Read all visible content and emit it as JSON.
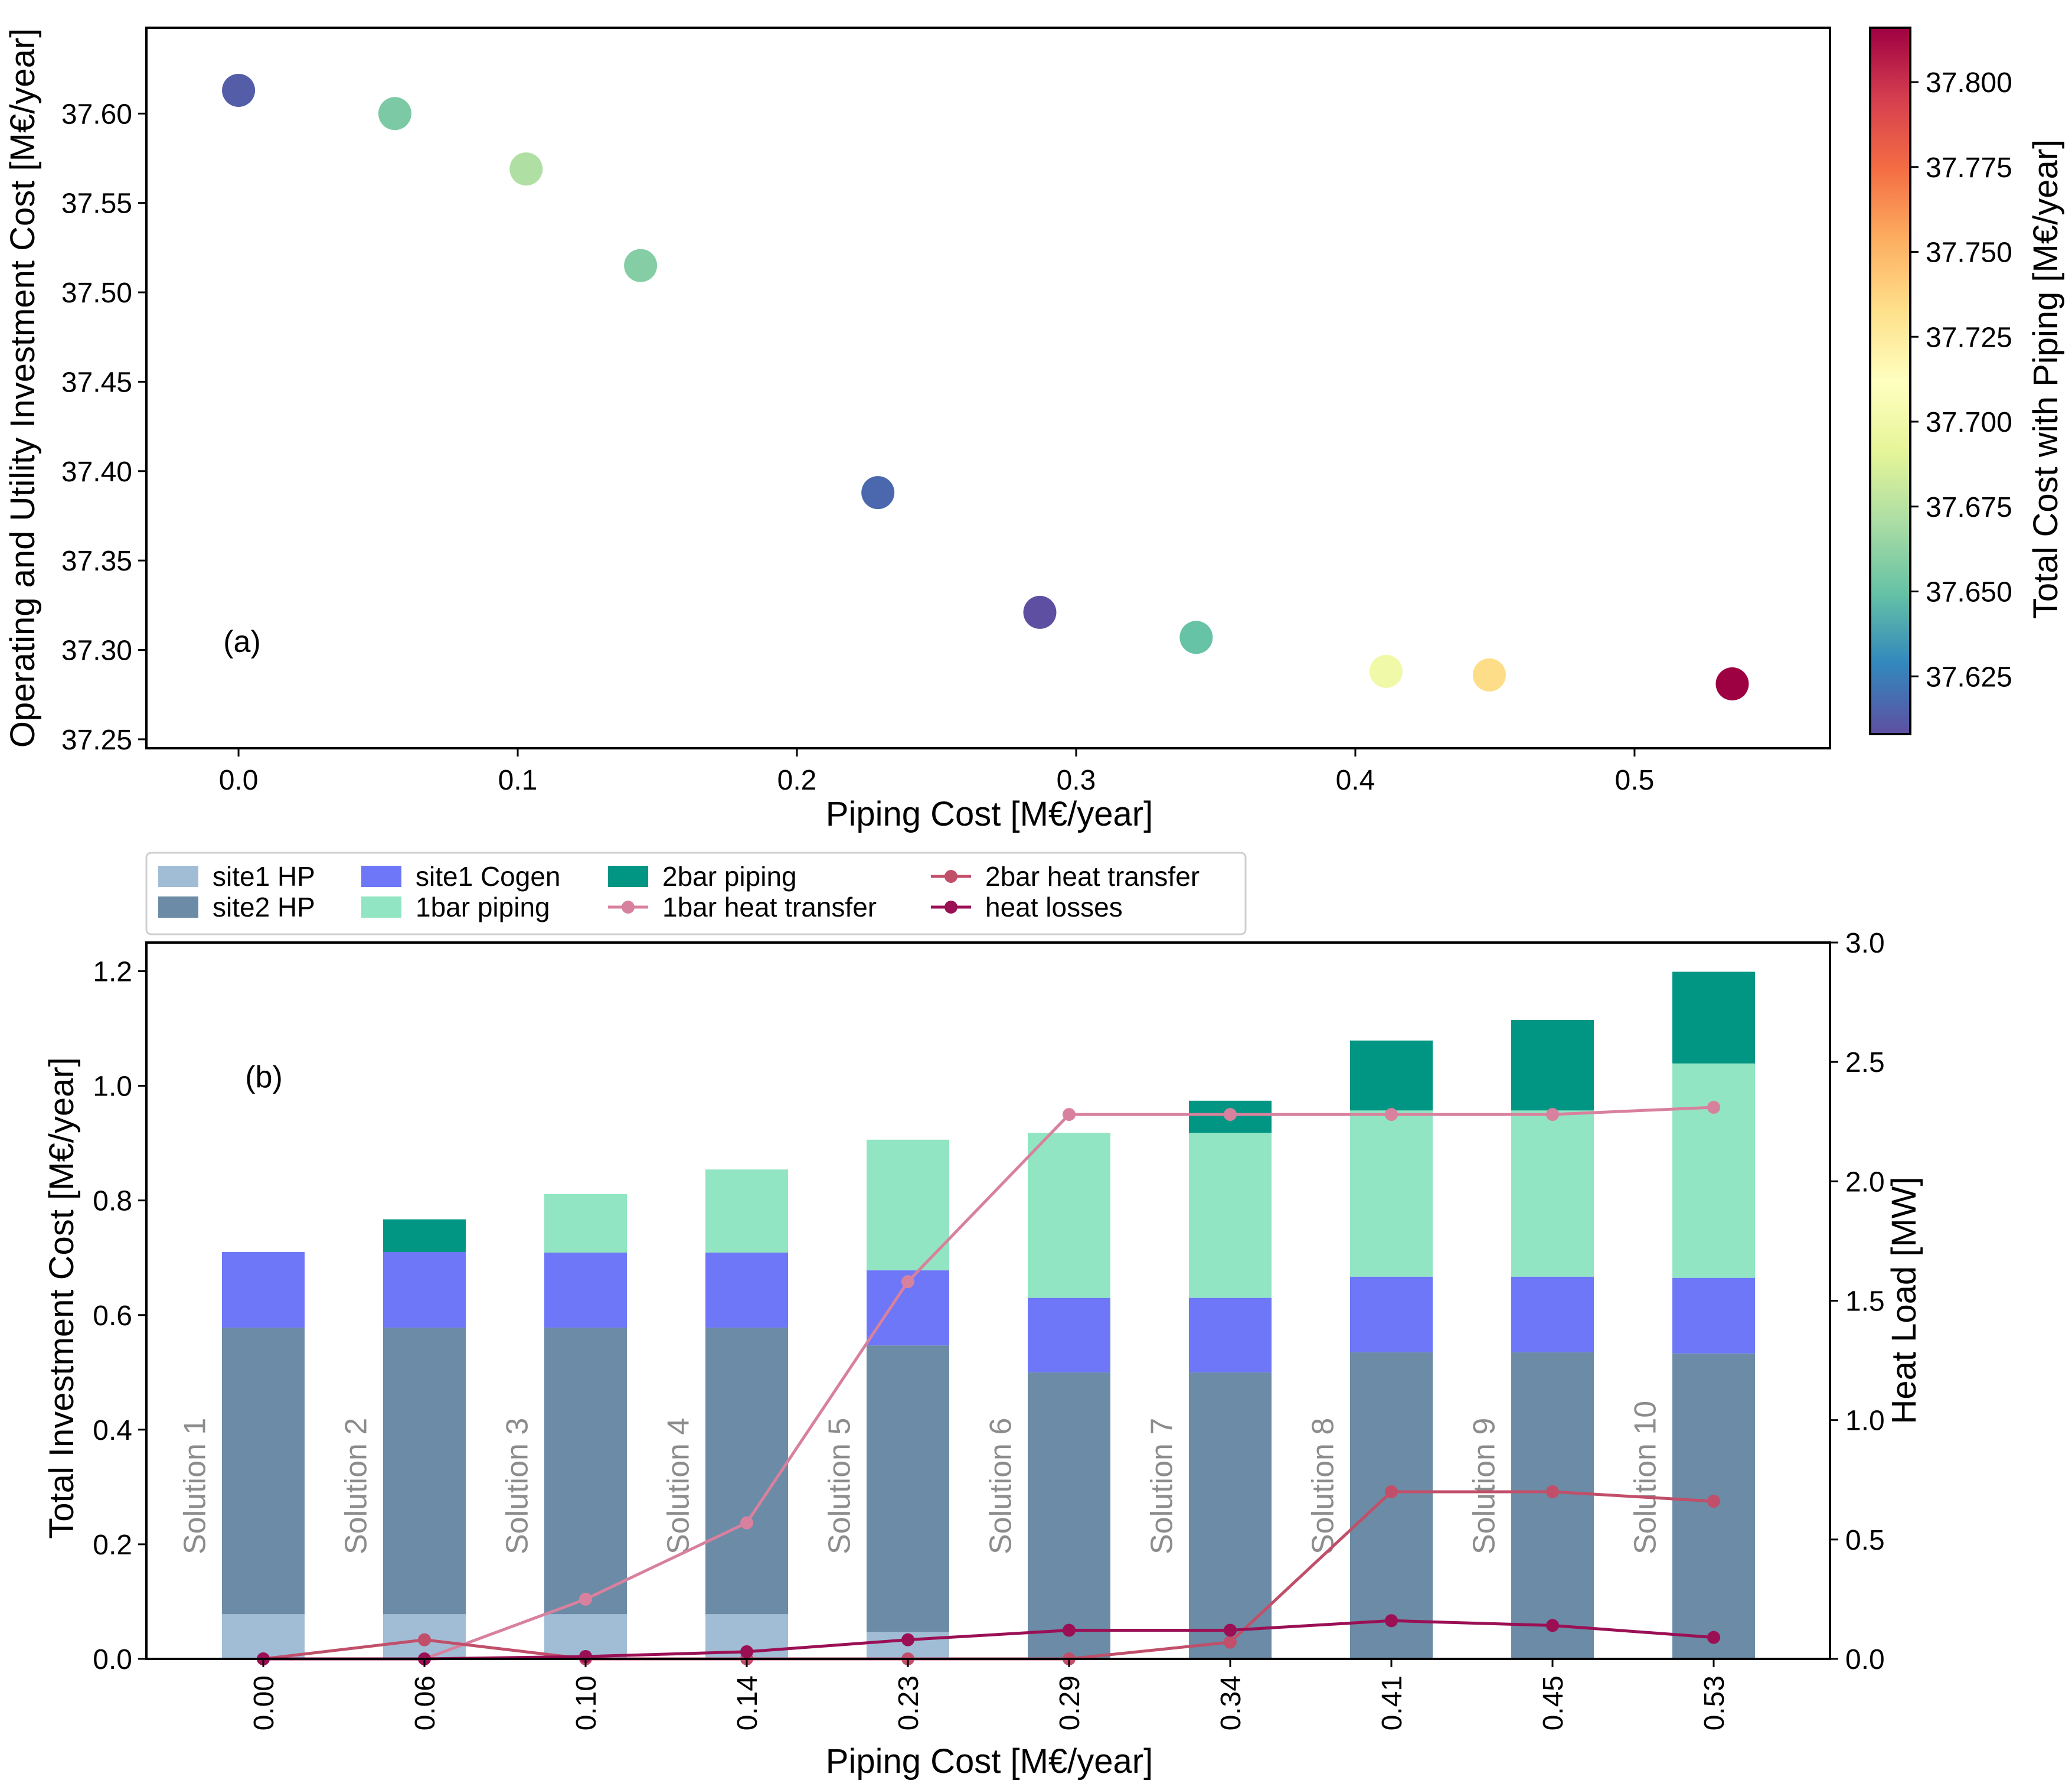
{
  "chart_data": [
    {
      "type": "scatter",
      "panel_label": "(a)",
      "xlabel": "Piping Cost [M€/year]",
      "ylabel": "Operating and Utility Investment Cost [M€/year]",
      "xlim": [
        -0.033,
        0.57
      ],
      "ylim": [
        37.245,
        37.648
      ],
      "xticks": [
        0.0,
        0.1,
        0.2,
        0.3,
        0.4,
        0.5
      ],
      "xtick_labels": [
        "0.0",
        "0.1",
        "0.2",
        "0.3",
        "0.4",
        "0.5"
      ],
      "yticks": [
        37.25,
        37.3,
        37.35,
        37.4,
        37.45,
        37.5,
        37.55,
        37.6
      ],
      "ytick_labels": [
        "37.25",
        "37.30",
        "37.35",
        "37.40",
        "37.45",
        "37.50",
        "37.55",
        "37.60"
      ],
      "points": [
        {
          "x": 0.0,
          "y": 37.613,
          "c": 37.613
        },
        {
          "x": 0.056,
          "y": 37.6,
          "c": 37.656
        },
        {
          "x": 0.103,
          "y": 37.569,
          "c": 37.672
        },
        {
          "x": 0.144,
          "y": 37.515,
          "c": 37.659
        },
        {
          "x": 0.229,
          "y": 37.388,
          "c": 37.617
        },
        {
          "x": 0.287,
          "y": 37.321,
          "c": 37.608
        },
        {
          "x": 0.343,
          "y": 37.307,
          "c": 37.65
        },
        {
          "x": 0.411,
          "y": 37.288,
          "c": 37.699
        },
        {
          "x": 0.448,
          "y": 37.286,
          "c": 37.734
        },
        {
          "x": 0.535,
          "y": 37.281,
          "c": 37.816
        }
      ],
      "colorbar": {
        "label": "Total Cost with Piping [M€/year]",
        "range": [
          37.608,
          37.816
        ],
        "colormap": "Spectral_r",
        "ticks": [
          37.625,
          37.65,
          37.675,
          37.7,
          37.725,
          37.75,
          37.775,
          37.8
        ],
        "tick_labels": [
          "37.625",
          "37.650",
          "37.675",
          "37.700",
          "37.725",
          "37.750",
          "37.775",
          "37.800"
        ]
      }
    },
    {
      "type": "bar",
      "stacked": true,
      "panel_label": "(b)",
      "xlabel": "Piping Cost [M€/year]",
      "ylabel": "Total Investment Cost [M€/year]",
      "y2label": "Heat Load [MW]",
      "categories": [
        "0.00",
        "0.06",
        "0.10",
        "0.14",
        "0.23",
        "0.29",
        "0.34",
        "0.41",
        "0.45",
        "0.53"
      ],
      "solution_labels": [
        "Solution 1",
        "Solution 2",
        "Solution 3",
        "Solution 4",
        "Solution 5",
        "Solution 6",
        "Solution 7",
        "Solution 8",
        "Solution 9",
        "Solution 10"
      ],
      "ylim": [
        0,
        1.25
      ],
      "yticks": [
        0.0,
        0.2,
        0.4,
        0.6,
        0.8,
        1.0,
        1.2
      ],
      "ytick_labels": [
        "0.0",
        "0.2",
        "0.4",
        "0.6",
        "0.8",
        "1.0",
        "1.2"
      ],
      "y2lim": [
        0,
        3.0
      ],
      "y2ticks": [
        0.0,
        0.5,
        1.0,
        1.5,
        2.0,
        2.5,
        3.0
      ],
      "y2tick_labels": [
        "0.0",
        "0.5",
        "1.0",
        "1.5",
        "2.0",
        "2.5",
        "3.0"
      ],
      "series": [
        {
          "name": "site1 HP",
          "color": "#a1bdd6",
          "values": [
            0.078,
            0.078,
            0.078,
            0.078,
            0.047,
            0.0,
            0.0,
            0.0,
            0.0,
            0.0
          ]
        },
        {
          "name": "site2 HP",
          "color": "#6b8ba6",
          "values": [
            0.5,
            0.5,
            0.5,
            0.5,
            0.5,
            0.5,
            0.5,
            0.535,
            0.535,
            0.533
          ]
        },
        {
          "name": "site1 Cogen",
          "color": "#6d77f7",
          "values": [
            0.132,
            0.132,
            0.131,
            0.131,
            0.131,
            0.13,
            0.13,
            0.132,
            0.132,
            0.132
          ]
        },
        {
          "name": "1bar piping",
          "color": "#92e5c2",
          "values": [
            0.0,
            0.0,
            0.102,
            0.145,
            0.228,
            0.288,
            0.288,
            0.29,
            0.29,
            0.374
          ]
        },
        {
          "name": "2bar piping",
          "color": "#009683",
          "values": [
            0.0,
            0.057,
            0.0,
            0.0,
            0.0,
            0.0,
            0.056,
            0.122,
            0.158,
            0.16
          ]
        }
      ],
      "lines": [
        {
          "name": "1bar heat transfer",
          "color": "#d8819e",
          "axis": "y2",
          "values": [
            0.0,
            0.0,
            0.25,
            0.57,
            1.58,
            2.28,
            2.28,
            2.28,
            2.28,
            2.31
          ]
        },
        {
          "name": "2bar heat transfer",
          "color": "#c14f69",
          "axis": "y2",
          "values": [
            0.0,
            0.08,
            0.0,
            0.0,
            0.0,
            0.0,
            0.07,
            0.7,
            0.7,
            0.66
          ]
        },
        {
          "name": "heat losses",
          "color": "#9b0f55",
          "axis": "y2",
          "values": [
            0.0,
            0.0,
            0.01,
            0.03,
            0.08,
            0.12,
            0.12,
            0.16,
            0.14,
            0.09
          ]
        }
      ],
      "legend": [
        {
          "name": "site1 HP",
          "kind": "patch",
          "color": "#a1bdd6"
        },
        {
          "name": "site2 HP",
          "kind": "patch",
          "color": "#6b8ba6"
        },
        {
          "name": "site1 Cogen",
          "kind": "patch",
          "color": "#6d77f7"
        },
        {
          "name": "1bar piping",
          "kind": "patch",
          "color": "#92e5c2"
        },
        {
          "name": "2bar piping",
          "kind": "patch",
          "color": "#009683"
        },
        {
          "name": "1bar heat transfer",
          "kind": "line",
          "color": "#d8819e"
        },
        {
          "name": "2bar heat transfer",
          "kind": "line",
          "color": "#c14f69"
        },
        {
          "name": "heat losses",
          "kind": "line",
          "color": "#9b0f55"
        }
      ]
    }
  ]
}
